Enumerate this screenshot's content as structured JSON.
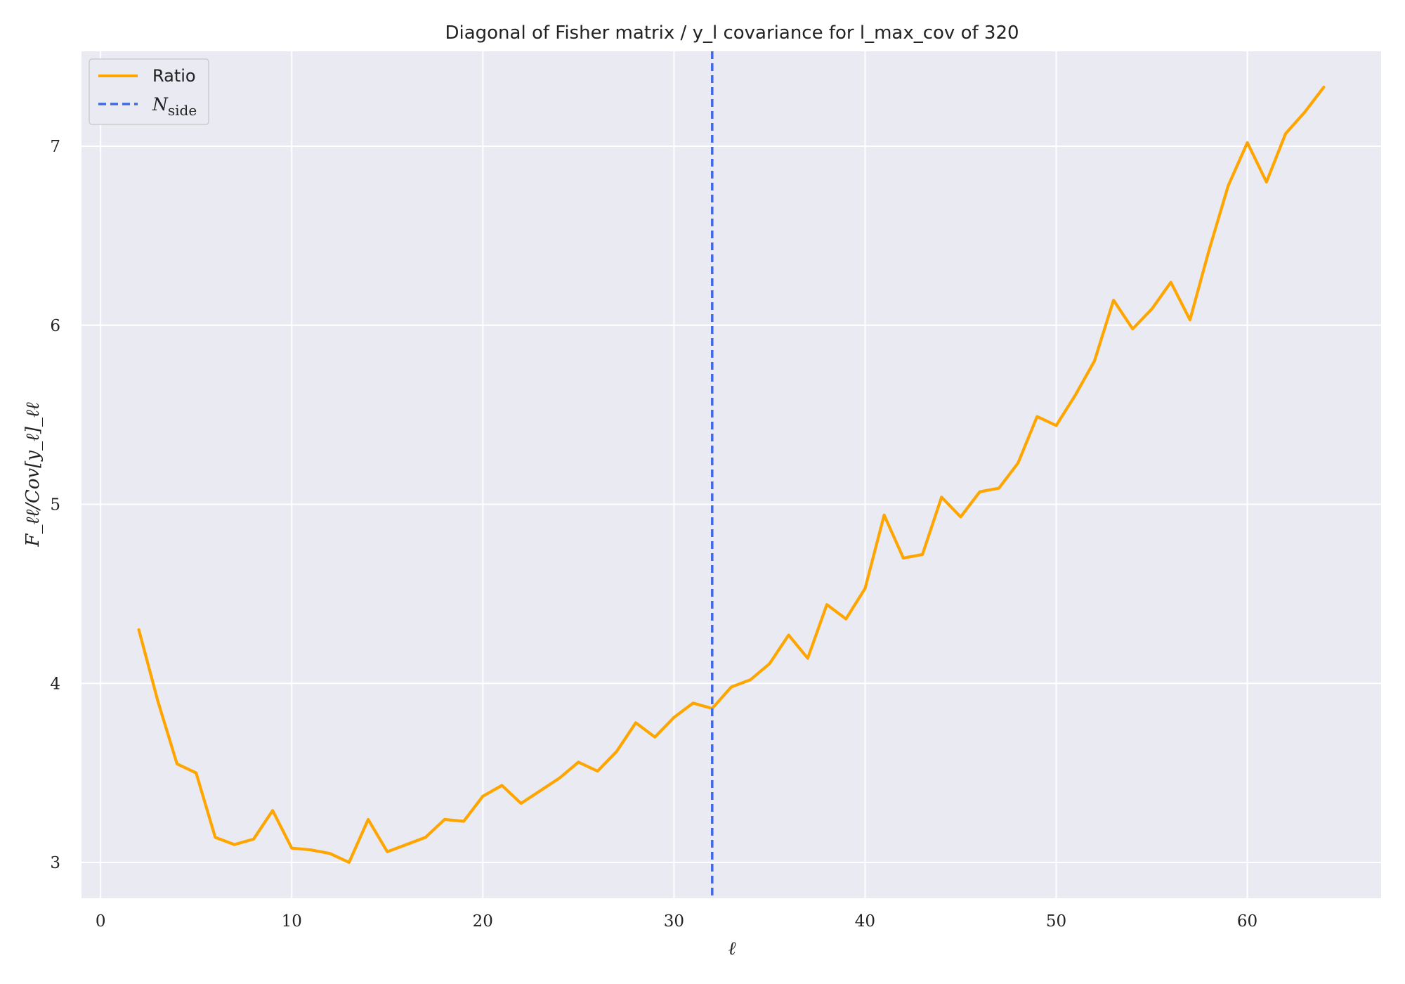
{
  "chart_data": {
    "type": "line",
    "title": "Diagonal of Fisher matrix / y_l covariance for l_max_cov of 320",
    "xlabel": "ℓ",
    "ylabel": "F_ℓℓ/Cov[y_ℓ]_ℓℓ",
    "xlim": [
      -1,
      67
    ],
    "ylim": [
      2.8,
      7.53
    ],
    "xticks": [
      0,
      10,
      20,
      30,
      40,
      50,
      60
    ],
    "yticks": [
      3,
      4,
      5,
      6,
      7
    ],
    "grid": true,
    "legend_position": "top-left",
    "series": [
      {
        "name": "Ratio",
        "color": "#ffa500",
        "x": [
          2,
          3,
          4,
          5,
          6,
          7,
          8,
          9,
          10,
          11,
          12,
          13,
          14,
          15,
          16,
          17,
          18,
          19,
          20,
          21,
          22,
          23,
          24,
          25,
          26,
          27,
          28,
          29,
          30,
          31,
          32,
          33,
          34,
          35,
          36,
          37,
          38,
          39,
          40,
          41,
          42,
          43,
          44,
          45,
          46,
          47,
          48,
          49,
          50,
          51,
          52,
          53,
          54,
          55,
          56,
          57,
          58,
          59,
          60,
          61,
          62,
          63,
          64
        ],
        "y": [
          4.3,
          3.9,
          3.55,
          3.5,
          3.14,
          3.1,
          3.13,
          3.29,
          3.08,
          3.07,
          3.05,
          3.0,
          3.24,
          3.06,
          3.1,
          3.14,
          3.24,
          3.23,
          3.37,
          3.43,
          3.33,
          3.4,
          3.47,
          3.56,
          3.51,
          3.62,
          3.78,
          3.7,
          3.81,
          3.89,
          3.86,
          3.98,
          4.02,
          4.11,
          4.27,
          4.14,
          4.44,
          4.36,
          4.53,
          4.94,
          4.7,
          4.72,
          5.04,
          4.93,
          5.07,
          5.09,
          5.23,
          5.49,
          5.44,
          5.61,
          5.8,
          6.14,
          5.98,
          6.09,
          6.24,
          6.03,
          6.42,
          6.78,
          7.02,
          6.8,
          7.07,
          7.19,
          7.33
        ]
      }
    ],
    "vlines": [
      {
        "name": "N_side",
        "x": 32,
        "color": "#4169e1",
        "style": "dashed"
      }
    ],
    "legend": [
      {
        "label": "Ratio",
        "style": "solid",
        "color": "#ffa500"
      },
      {
        "label": "N",
        "subscript": "side",
        "style": "dashed",
        "color": "#4169e1"
      }
    ]
  }
}
